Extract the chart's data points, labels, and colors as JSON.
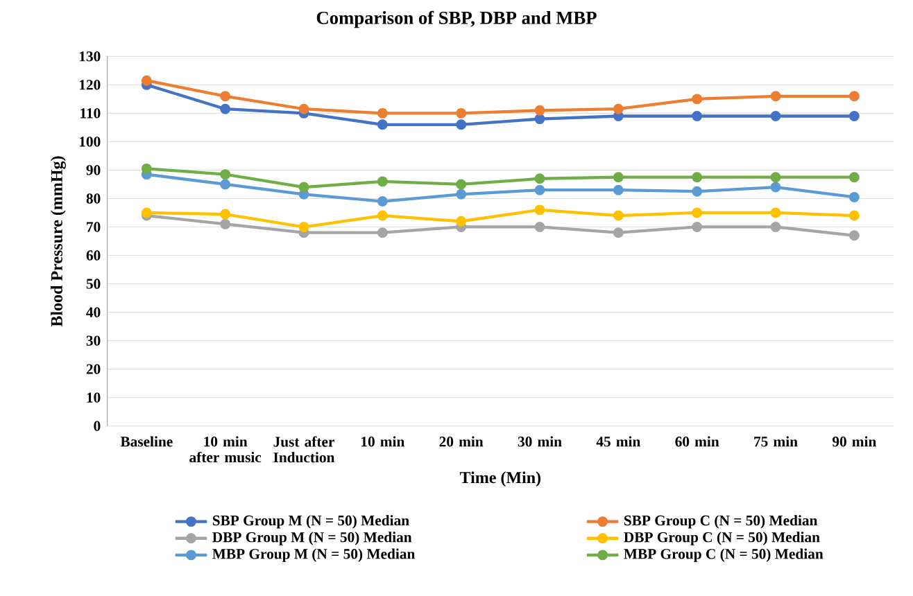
{
  "chart_data": {
    "type": "line",
    "title": "Comparison  of SBP, DBP and  MBP",
    "xlabel": "Time (Min)",
    "ylabel": "Blood Pressure (mmHg)",
    "categories": [
      "Baseline",
      "10 min after music",
      "Just after Induction",
      "10 min",
      "20 min",
      "30 min",
      "45 min",
      "60 min",
      "75 min",
      "90 min"
    ],
    "series": [
      {
        "name": "SBP Group M (N = 50) Median",
        "color": "#4472c4",
        "values": [
          120,
          111.5,
          110,
          106,
          106,
          108,
          109,
          109,
          109,
          109
        ]
      },
      {
        "name": "SBP Group C (N = 50)  Median",
        "color": "#ed7d31",
        "values": [
          121.5,
          116,
          111.5,
          110,
          110,
          111,
          111.5,
          115,
          116,
          116
        ]
      },
      {
        "name": "DBP Group M (N = 50) Median",
        "color": "#a5a5a5",
        "values": [
          74,
          71,
          68,
          68,
          70,
          70,
          68,
          70,
          70,
          67
        ]
      },
      {
        "name": "DBP Group C (N = 50)  Median",
        "color": "#ffc000",
        "values": [
          75,
          74.5,
          70,
          74,
          72,
          76,
          74,
          75,
          75,
          74
        ]
      },
      {
        "name": "MBP Group M (N = 50) Median",
        "color": "#5b9bd5",
        "values": [
          88.5,
          85,
          81.5,
          79,
          81.5,
          83,
          83,
          82.5,
          84,
          80.5
        ]
      },
      {
        "name": "MBP Group C (N = 50)  Median",
        "color": "#70ad47",
        "values": [
          90.5,
          88.5,
          84,
          86,
          85,
          87,
          87.5,
          87.5,
          87.5,
          87.5
        ]
      }
    ],
    "ylim": [
      0,
      130
    ],
    "yticks": [
      0,
      10,
      20,
      30,
      40,
      50,
      60,
      70,
      80,
      90,
      100,
      110,
      120,
      130
    ],
    "grid": "y",
    "legend": "bottom",
    "marker": "circle",
    "line_style": "solid"
  }
}
